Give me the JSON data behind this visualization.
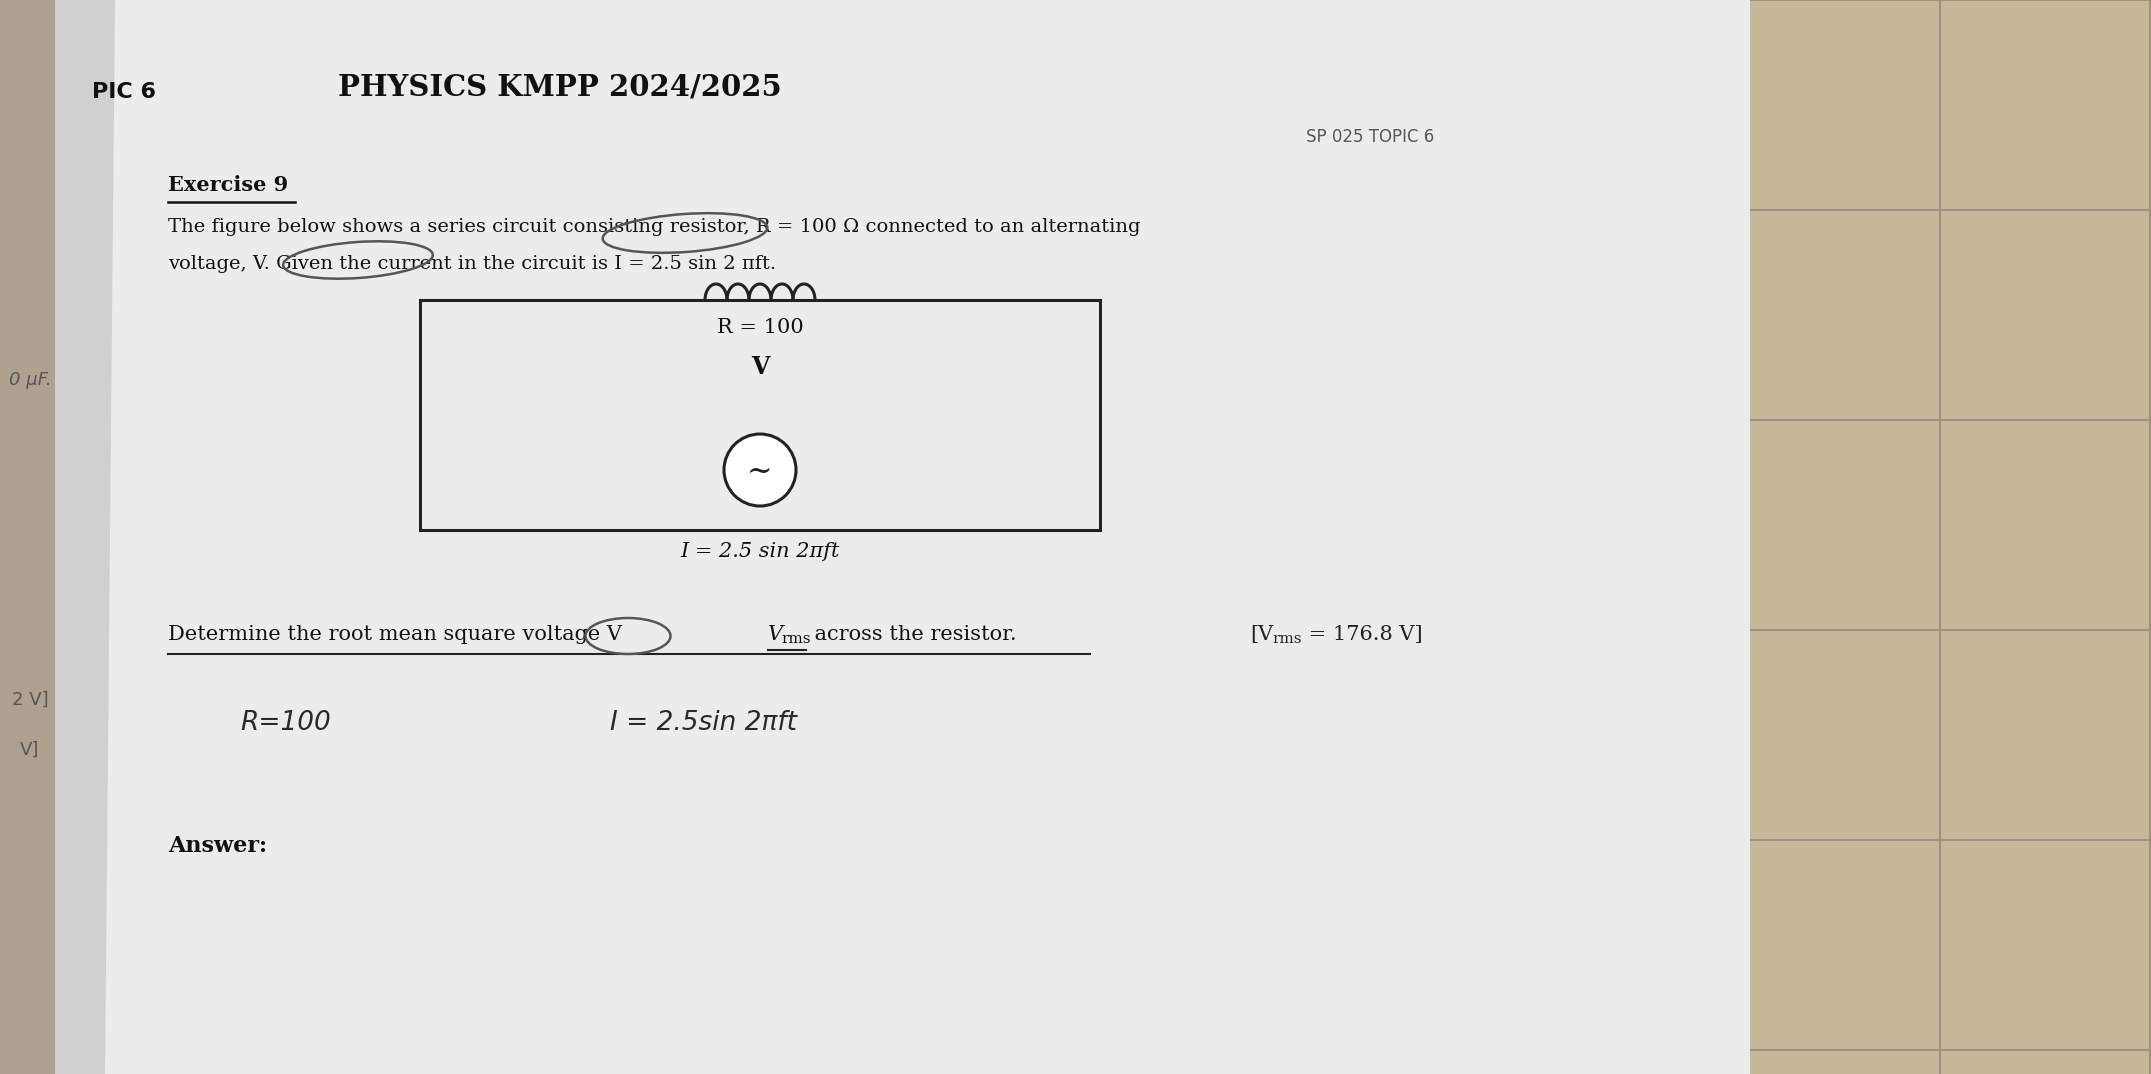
{
  "bg_color": "#b0a090",
  "tile_color": "#c8b89a",
  "page_color": "#ececec",
  "shadow_color": "#d0d0d0",
  "title": "PHYSICS KMPP 2024/2025",
  "subtitle": "SP 025 TOPIC 6",
  "pic_label": "PIC 6",
  "exercise_label": "Exercise 9",
  "exercise_text1": "The figure below shows a series circuit consisting resistor, R = 100 Ω connected to an alternating",
  "exercise_text2": "voltage, V. Given the current in the circuit is I = 2.5 sin 2 πft.",
  "resistor_label": "R = 100",
  "voltage_label": "V",
  "current_label": "I = 2.5 sin 2πft",
  "question_main": "Determine the root mean square voltage V",
  "question_sub": "rms",
  "question_end": " across the resistor.",
  "answer_bracket": "[V",
  "answer_sub": "rms",
  "answer_end": " = 176.8 V]",
  "answer_label": "Answer:",
  "handwritten_r": "R=100",
  "handwritten_i": "I = 2.5sin 2πft",
  "left_label1": "0 μF.",
  "left_label2": "2 V]",
  "left_label3": "V]",
  "text_color": "#111111",
  "dark_color": "#222222",
  "mid_color": "#555555",
  "light_color": "#888888"
}
